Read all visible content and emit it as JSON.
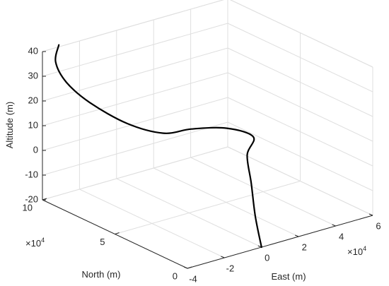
{
  "chart_data": {
    "type": "line",
    "projection": "3d",
    "title": "",
    "xlabel": "East (m)",
    "ylabel": "North (m)",
    "zlabel": "Altitude (m)",
    "x_exponent_label": "×10^4",
    "y_exponent_label": "×10^4",
    "xlim": [
      -4,
      6
    ],
    "ylim": [
      0,
      10
    ],
    "zlim": [
      -20,
      40
    ],
    "xticks": [
      -4,
      -2,
      0,
      2,
      4,
      6
    ],
    "xtick_labels": [
      "-4",
      "-2",
      "0",
      "2",
      "4",
      "6"
    ],
    "yticks": [
      0,
      5,
      10
    ],
    "ytick_labels": [
      "0",
      "5",
      "10"
    ],
    "zticks": [
      -20,
      -10,
      0,
      10,
      20,
      30,
      40
    ],
    "ztick_labels": [
      "-20",
      "-10",
      "0",
      "10",
      "20",
      "30",
      "40"
    ],
    "grid": true,
    "series": [
      {
        "color": "#000000",
        "x": [
          0,
          0.6,
          1.4,
          2.2,
          3,
          2.2,
          0.6,
          -1,
          -2.4,
          -3.4,
          -3.8,
          -3.6,
          -2.8
        ],
        "y": [
          0,
          1.2,
          2.5,
          3.8,
          4.4,
          5.2,
          5.6,
          5.5,
          6.2,
          7.5,
          8.6,
          9.6,
          10.4
        ],
        "z": [
          -20,
          -12,
          -4,
          2,
          6,
          9,
          11,
          13,
          18,
          25,
          31,
          36,
          39
        ]
      }
    ]
  }
}
